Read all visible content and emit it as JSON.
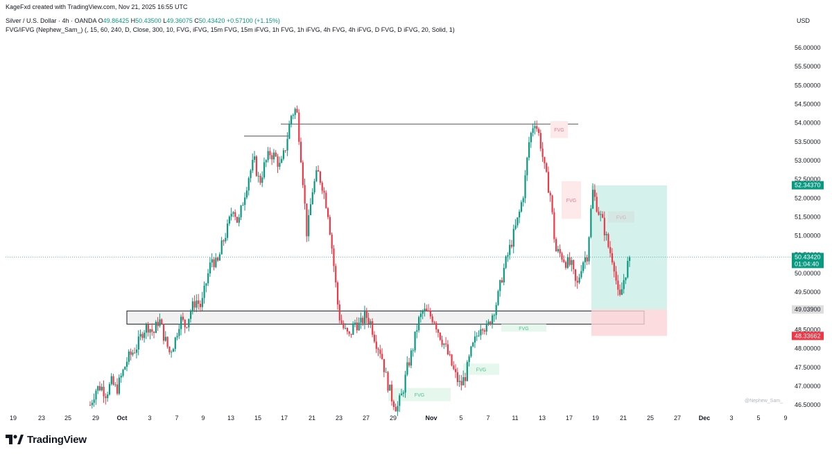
{
  "header": {
    "credit": "KageFxd created with TradingView.com, Nov 21, 2025 16:55 UTC",
    "symbol": "Silver / U.S. Dollar · 4h · OANDA",
    "o_label": "O",
    "o_value": "49.86425",
    "h_label": "H",
    "h_value": "50.43500",
    "l_label": "L",
    "l_value": "49.36075",
    "c_label": "C",
    "c_value": "50.43420",
    "change": "+0.57100 (+1.15%)",
    "indicator": "FVG/iFVG (Nephew_Sam_) (, 15, 60, 240, D, Close, 300, 10, FVG, iFVG, 15m FVG, 15m iFVG, 1h FVG, 1h iFVG, 4h FVG, 4h iFVG, D FVG, D iFVG, 20, Solid, 1)"
  },
  "currency": "USD",
  "brand": "TradingView",
  "watermark": "@Nephew_Sam_",
  "colors": {
    "up": "#089981",
    "down": "#f23645",
    "zone_green": "#b2e5dd",
    "zone_red": "#fbd3d7",
    "fvg_green": "#e6f7ed",
    "fvg_red": "#fde8ea",
    "grid": "#f0f3fa"
  },
  "chart_data": {
    "type": "candlestick",
    "x_axis_labels": [
      "19",
      "23",
      "25",
      "29",
      "Oct",
      "3",
      "7",
      "9",
      "13",
      "15",
      "17",
      "21",
      "23",
      "27",
      "29",
      "Nov",
      "5",
      "7",
      "11",
      "13",
      "17",
      "19",
      "21",
      "25",
      "27",
      "Dec",
      "3",
      "5",
      "9"
    ],
    "y_ticks": [
      "56.00000",
      "55.50000",
      "55.00000",
      "54.50000",
      "54.00000",
      "53.50000",
      "53.00000",
      "52.50000",
      "52.00000",
      "51.50000",
      "51.00000",
      "50.50000",
      "50.00000",
      "49.50000",
      "49.00000",
      "48.50000",
      "48.00000",
      "47.50000",
      "47.00000",
      "46.50000"
    ],
    "ylim": [
      46.3,
      56.35
    ],
    "price_path": [
      46.5,
      46.9,
      47.0,
      46.8,
      47.1,
      46.9,
      47.3,
      47.7,
      47.9,
      48.1,
      48.5,
      48.6,
      48.4,
      48.8,
      48.3,
      47.9,
      48.2,
      48.8,
      48.6,
      49.0,
      49.3,
      49.1,
      49.8,
      50.4,
      50.2,
      50.8,
      51.2,
      51.8,
      51.3,
      52.0,
      52.6,
      53.0,
      52.4,
      52.9,
      53.2,
      53.1,
      52.8,
      53.4,
      54.2,
      54.4,
      52.9,
      51.0,
      52.2,
      52.7,
      52.3,
      51.6,
      50.3,
      48.9,
      48.5,
      48.3,
      48.7,
      48.6,
      48.9,
      48.7,
      48.2,
      47.9,
      47.2,
      46.7,
      46.4,
      46.8,
      47.5,
      48.0,
      48.7,
      49.0,
      48.9,
      48.8,
      48.4,
      48.1,
      47.7,
      47.3,
      47.0,
      47.3,
      47.9,
      48.3,
      48.7,
      48.5,
      48.9,
      49.3,
      50.0,
      50.5,
      51.0,
      51.5,
      52.2,
      53.5,
      54.1,
      53.6,
      52.7,
      52.1,
      50.6,
      50.5,
      50.3,
      50.2,
      49.6,
      50.3,
      50.5,
      52.2,
      51.7,
      51.3,
      50.7,
      50.3,
      49.2,
      49.9,
      50.43
    ],
    "last_price": "50.43420",
    "countdown": "01:04:40",
    "labels": {
      "take_profit": "52.34370",
      "entry": "49.03900",
      "stop_loss": "48.33662"
    },
    "fvg_labels": [
      "FVG",
      "FVG",
      "FVG",
      "FVG",
      "FVG",
      "FVG"
    ],
    "levels": {
      "resistance_1": 53.65,
      "resistance_2": 53.97,
      "support_zone": [
        48.65,
        49.0
      ],
      "tp": 52.34,
      "entry": 49.039,
      "sl": 48.337
    }
  }
}
